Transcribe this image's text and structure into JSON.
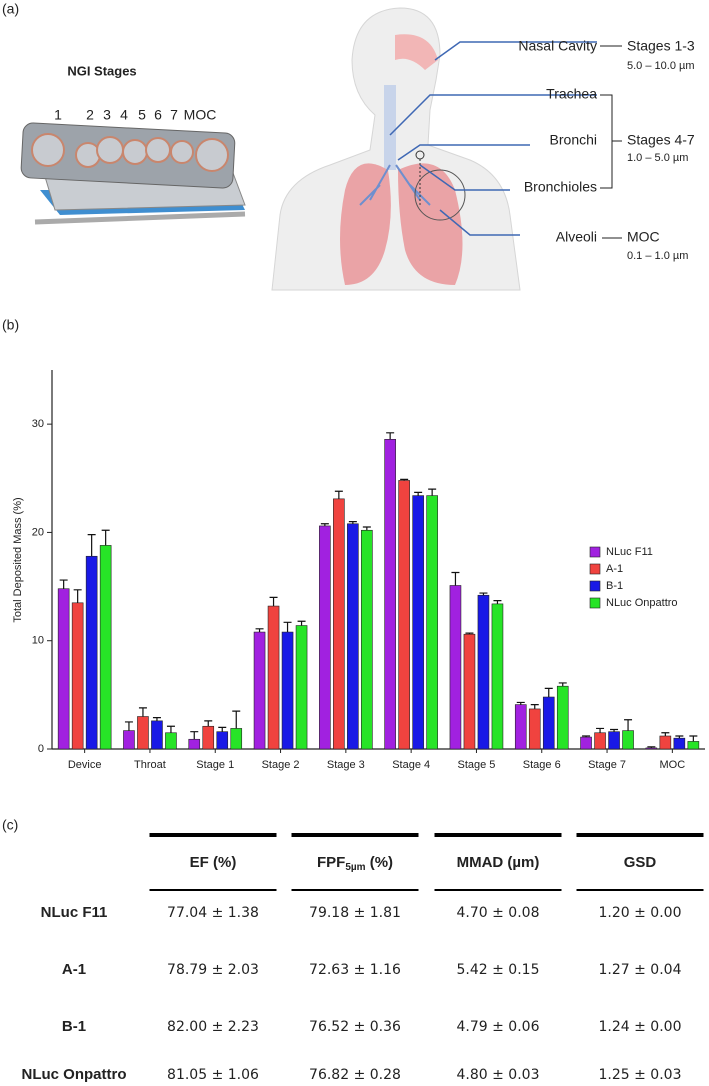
{
  "panel_labels": [
    "(a)",
    "(b)",
    "(c)"
  ],
  "panel_a": {
    "ngi_title": "NGI Stages",
    "ngi_stage_numbers": [
      "1",
      "2",
      "3",
      "4",
      "5",
      "6",
      "7",
      "MOC"
    ],
    "regions": [
      "Nasal Cavity",
      "Trachea",
      "Bronchi",
      "Bronchioles",
      "Alveoli"
    ],
    "groups": [
      {
        "stages": "Stages 1-3",
        "range": "5.0 – 10.0 µm"
      },
      {
        "stages": "Stages 4-7",
        "range": "1.0 – 5.0 µm"
      },
      {
        "stages": "MOC",
        "range": "0.1 – 1.0 µm"
      }
    ]
  },
  "chart_data": {
    "type": "bar",
    "y_label": "Total Deposited Mass  (%)",
    "categories": [
      "Device",
      "Throat",
      "Stage 1",
      "Stage 2",
      "Stage 3",
      "Stage 4",
      "Stage 5",
      "Stage 6",
      "Stage 7",
      "MOC"
    ],
    "series": [
      {
        "name": "NLuc F11",
        "color": "#a121e0",
        "values": [
          14.8,
          1.7,
          0.9,
          10.8,
          20.6,
          28.6,
          15.1,
          4.1,
          1.1,
          0.1
        ],
        "errors": [
          0.8,
          0.8,
          0.7,
          0.3,
          0.2,
          0.6,
          1.2,
          0.2,
          0.1,
          0.1
        ]
      },
      {
        "name": "A-1",
        "color": "#f0433f",
        "values": [
          13.5,
          3.0,
          2.1,
          13.2,
          23.1,
          24.8,
          10.6,
          3.7,
          1.5,
          1.2
        ],
        "errors": [
          1.2,
          0.8,
          0.5,
          0.8,
          0.7,
          0.1,
          0.1,
          0.4,
          0.4,
          0.3
        ]
      },
      {
        "name": "B-1",
        "color": "#1919e6",
        "values": [
          17.8,
          2.6,
          1.6,
          10.8,
          20.8,
          23.4,
          14.2,
          4.8,
          1.6,
          1.0
        ],
        "errors": [
          2.0,
          0.3,
          0.4,
          0.9,
          0.2,
          0.3,
          0.2,
          0.8,
          0.2,
          0.2
        ]
      },
      {
        "name": "NLuc Onpattro",
        "color": "#27e427",
        "values": [
          18.8,
          1.5,
          1.9,
          11.4,
          20.2,
          23.4,
          13.4,
          5.8,
          1.7,
          0.7
        ],
        "errors": [
          1.4,
          0.6,
          1.6,
          0.4,
          0.3,
          0.6,
          0.3,
          0.3,
          1.0,
          0.5
        ]
      }
    ],
    "ylim": [
      0,
      35
    ],
    "yticks": [
      0,
      10,
      20,
      30
    ],
    "legend": "right"
  },
  "table": {
    "headers": [
      "EF (%)",
      {
        "main": "FPF",
        "sub": "5µm",
        "suffix": " (%)"
      },
      "MMAD (µm)",
      "GSD"
    ],
    "rows": [
      [
        "NLuc F11",
        "77.04 ± 1.38",
        "79.18 ± 1.81",
        "4.70 ± 0.08",
        "1.20 ± 0.00"
      ],
      [
        "A-1",
        "78.79 ± 2.03",
        "72.63 ± 1.16",
        "5.42 ± 0.15",
        "1.27 ± 0.04"
      ],
      [
        "B-1",
        "82.00 ± 2.23",
        "76.52 ± 0.36",
        "4.79 ± 0.06",
        "1.24 ± 0.00"
      ],
      [
        "NLuc Onpattro",
        "81.05 ± 1.06",
        "76.82 ± 0.28",
        "4.80 ± 0.03",
        "1.25 ± 0.03"
      ]
    ]
  }
}
